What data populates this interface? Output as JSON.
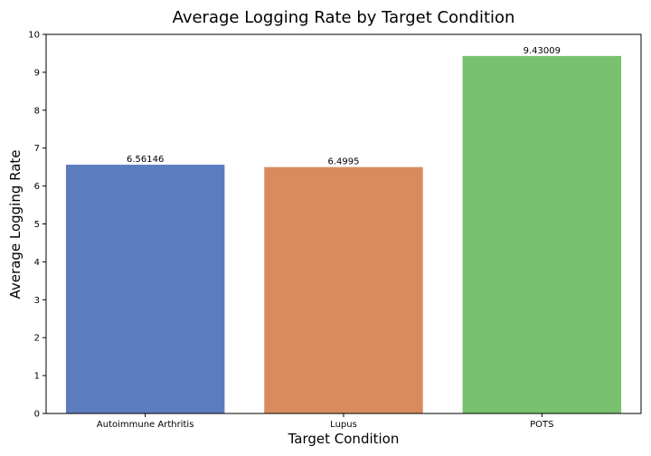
{
  "chart_data": {
    "type": "bar",
    "title": "Average Logging Rate by Target Condition",
    "xlabel": "Target Condition",
    "ylabel": "Average Logging Rate",
    "categories": [
      "Autoimmune Arthritis",
      "Lupus",
      "POTS"
    ],
    "values": [
      6.56146,
      6.4995,
      9.43009
    ],
    "data_labels": [
      "6.56146",
      "6.4995",
      "9.43009"
    ],
    "colors": [
      "#5b7dc0",
      "#d98b5f",
      "#77c16f"
    ],
    "ylim": [
      0,
      10
    ],
    "yticks": [
      0,
      1,
      2,
      3,
      4,
      5,
      6,
      7,
      8,
      9,
      10
    ],
    "ytick_labels": [
      "0",
      "1",
      "2",
      "3",
      "4",
      "5",
      "6",
      "7",
      "8",
      "9",
      "10"
    ],
    "grid": false,
    "legend": "none"
  }
}
